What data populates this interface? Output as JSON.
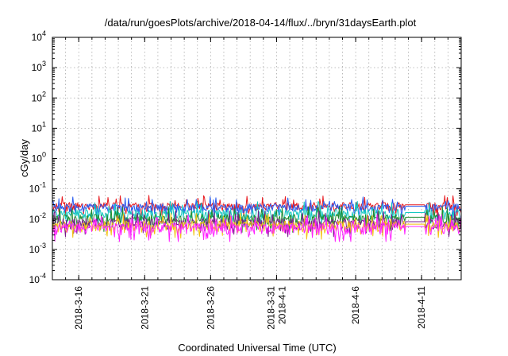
{
  "chart_data": {
    "type": "line",
    "title": "/data/run/goesPlots/archive/2018-04-14/flux/../bryn/31daysEarth.plot",
    "xlabel": "Coordinated Universal Time (UTC)",
    "ylabel": "cGy/day",
    "yscale": "log",
    "ylim": [
      0.0001,
      10000
    ],
    "xlim": [
      "2018-03-14",
      "2018-04-14"
    ],
    "grid": true,
    "legend": "none",
    "y_ticks": [
      {
        "base": "10",
        "exp": "-4",
        "value": 0.0001
      },
      {
        "base": "10",
        "exp": "-3",
        "value": 0.001
      },
      {
        "base": "10",
        "exp": "-2",
        "value": 0.01
      },
      {
        "base": "10",
        "exp": "-1",
        "value": 0.1
      },
      {
        "base": "10",
        "exp": "0",
        "value": 1
      },
      {
        "base": "10",
        "exp": "1",
        "value": 10
      },
      {
        "base": "10",
        "exp": "2",
        "value": 100
      },
      {
        "base": "10",
        "exp": "3",
        "value": 1000
      },
      {
        "base": "10",
        "exp": "4",
        "value": 10000
      }
    ],
    "x_ticks": [
      {
        "date": "2018-03-16",
        "labels": [
          "2018-3-16"
        ]
      },
      {
        "date": "2018-03-21",
        "labels": [
          "2018-3-21"
        ]
      },
      {
        "date": "2018-03-26",
        "labels": [
          "2018-3-26"
        ]
      },
      {
        "date": "2018-03-31",
        "labels": [
          "2018-3-31",
          "2018-4-1"
        ]
      },
      {
        "date": "2018-04-06",
        "labels": [
          "2018-4-6"
        ]
      },
      {
        "date": "2018-04-11",
        "labels": [
          "2018-4-11"
        ]
      }
    ],
    "series": [
      {
        "color": "#e8181e",
        "base": 0.027,
        "spread": 0.0085,
        "seed": 11
      },
      {
        "color": "#2a5cf0",
        "base": 0.024,
        "spread": 0.008,
        "seed": 23
      },
      {
        "color": "#13c7c0",
        "base": 0.015,
        "spread": 0.006,
        "seed": 37
      },
      {
        "color": "#1f8a2e",
        "base": 0.0105,
        "spread": 0.004,
        "seed": 41
      },
      {
        "color": "#7a1d8c",
        "base": 0.0075,
        "spread": 0.003,
        "seed": 53
      },
      {
        "color": "#f2c20f",
        "base": 0.0062,
        "spread": 0.0025,
        "seed": 67
      },
      {
        "color": "#ff20ff",
        "base": 0.0052,
        "spread": 0.0022,
        "seed": 79
      }
    ],
    "data_gap": [
      "2018-04-09T18:00",
      "2018-04-11T06:00"
    ]
  }
}
